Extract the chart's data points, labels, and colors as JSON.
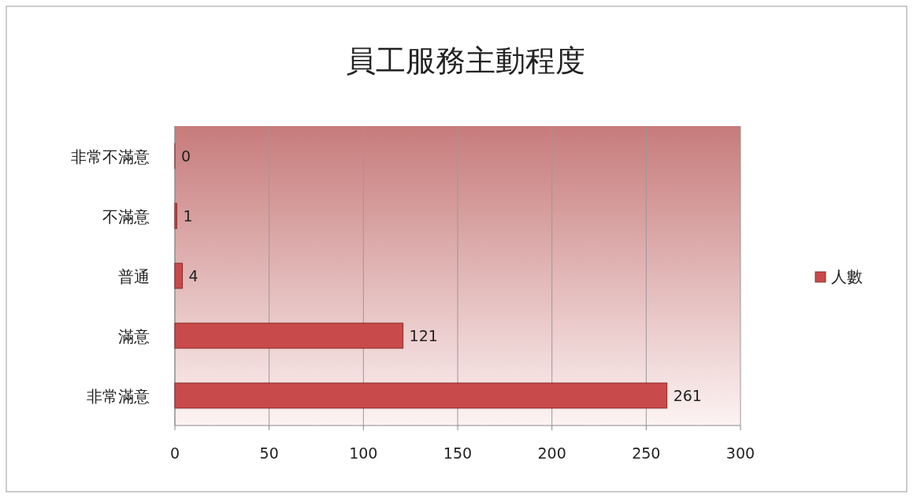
{
  "chart_data": {
    "type": "bar",
    "orientation": "horizontal",
    "title": "員工服務主動程度",
    "categories": [
      "非常不滿意",
      "不滿意",
      "普通",
      "滿意",
      "非常滿意"
    ],
    "series": [
      {
        "name": "人數",
        "color": "#c94a4a",
        "values": [
          0,
          1,
          4,
          121,
          261
        ]
      }
    ],
    "xlim": [
      0,
      300
    ],
    "xticks": [
      0,
      50,
      100,
      150,
      200,
      250,
      300
    ],
    "grid": "x",
    "legend": "right",
    "data_labels": true
  }
}
